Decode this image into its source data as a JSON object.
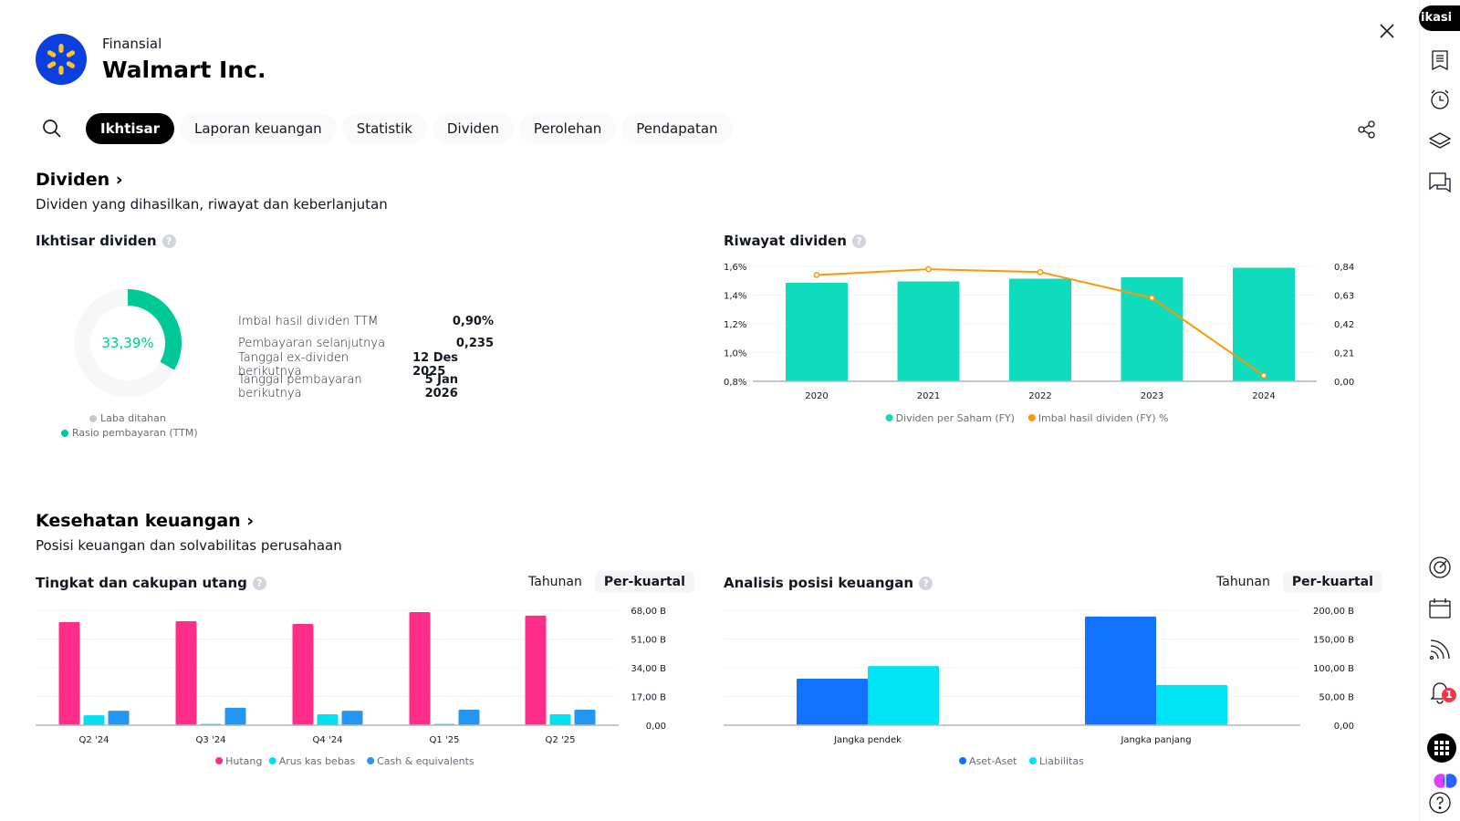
{
  "header": {
    "category": "Finansial",
    "company": "Walmart Inc.",
    "rail_pill": "ikasi"
  },
  "tabs": [
    {
      "label": "Ikhtisar",
      "active": true
    },
    {
      "label": "Laporan keuangan",
      "active": false
    },
    {
      "label": "Statistik",
      "active": false
    },
    {
      "label": "Dividen",
      "active": false
    },
    {
      "label": "Perolehan",
      "active": false
    },
    {
      "label": "Pendapatan",
      "active": false
    }
  ],
  "dividends": {
    "title": "Dividen ›",
    "subtitle": "Dividen yang dihasilkan, riwayat dan keberlanjutan",
    "overview": {
      "title": "Ikhtisar dividen",
      "payout_ratio_pct": 33.39,
      "payout_label": "33,39%",
      "legend": [
        {
          "label": "Laba ditahan",
          "color": "#c8c8c8"
        },
        {
          "label": "Rasio pembayaran (TTM)",
          "color": "#00c896"
        }
      ],
      "rows": [
        {
          "key": "Imbal hasil dividen TTM",
          "value": "0,90%"
        },
        {
          "key": "Pembayaran selanjutnya",
          "value": "0,235"
        },
        {
          "key": "Tanggal ex-dividen berikutnya",
          "value": "12 Des 2025"
        },
        {
          "key": "Tanggal pembayaran berikutnya",
          "value": "5 Jan 2026"
        }
      ]
    },
    "history_title": "Riwayat dividen"
  },
  "health": {
    "title": "Kesehatan keuangan ›",
    "subtitle": "Posisi keuangan dan solvabilitas perusahaan",
    "debt_title": "Tingkat dan cakupan utang",
    "position_title": "Analisis posisi keuangan",
    "toggle": {
      "annual": "Tahunan",
      "quarterly": "Per-kuartal",
      "selected": "quarterly"
    }
  },
  "chart_data": [
    {
      "id": "dividend-history",
      "type": "bar",
      "title": "Riwayat dividen",
      "categories": [
        "2020",
        "2021",
        "2022",
        "2023",
        "2024"
      ],
      "series": [
        {
          "name": "Dividen per Saham (FY)",
          "kind": "bar",
          "axis": "right",
          "color": "#0fdbbd",
          "values": [
            0.72,
            0.73,
            0.75,
            0.76,
            0.83
          ]
        },
        {
          "name": "Imbal hasil dividen (FY) %",
          "kind": "line",
          "axis": "left",
          "color": "#ff9800",
          "values": [
            1.54,
            1.58,
            1.56,
            1.38,
            0.84
          ]
        }
      ],
      "left_axis": {
        "ylim": [
          0.8,
          1.6
        ],
        "ticks": [
          "1,6%",
          "1,4%",
          "1,2%",
          "1,0%",
          "0,8%"
        ]
      },
      "right_axis": {
        "ylim": [
          0,
          0.84
        ],
        "ticks": [
          "0,84",
          "0,63",
          "0,42",
          "0,21",
          "0,00"
        ]
      },
      "legend": "bottom"
    },
    {
      "id": "debt-coverage",
      "type": "bar",
      "title": "Tingkat dan cakupan utang",
      "categories": [
        "Q2 '24",
        "Q3 '24",
        "Q4 '24",
        "Q1 '25",
        "Q2 '25"
      ],
      "series": [
        {
          "name": "Hutang",
          "color": "#ff2d8a",
          "values": [
            61.0,
            61.5,
            59.9,
            66.9,
            64.8
          ]
        },
        {
          "name": "Arus kas bebas",
          "color": "#00e0f0",
          "values": [
            5.9,
            0.5,
            6.5,
            0.4,
            6.5
          ]
        },
        {
          "name": "Cash & equivalents",
          "color": "#2196f3",
          "values": [
            8.6,
            10.3,
            8.6,
            9.2,
            9.2
          ]
        }
      ],
      "ylim": [
        0,
        68
      ],
      "ticks": [
        "68,00 B",
        "51,00 B",
        "34,00 B",
        "17,00 B",
        "0,00"
      ],
      "unit": "B",
      "legend": "bottom"
    },
    {
      "id": "financial-position",
      "type": "bar",
      "title": "Analisis posisi keuangan",
      "categories": [
        "Jangka pendek",
        "Jangka panjang"
      ],
      "series": [
        {
          "name": "Aset-Aset",
          "color": "#1172ff",
          "values": [
            81,
            189
          ]
        },
        {
          "name": "Liabilitas",
          "color": "#00e5f5",
          "values": [
            103,
            70
          ]
        }
      ],
      "ylim": [
        0,
        200
      ],
      "ticks": [
        "200,00 B",
        "150,00 B",
        "100,00 B",
        "50,00 B",
        "0,00"
      ],
      "unit": "B",
      "legend": "bottom"
    }
  ]
}
